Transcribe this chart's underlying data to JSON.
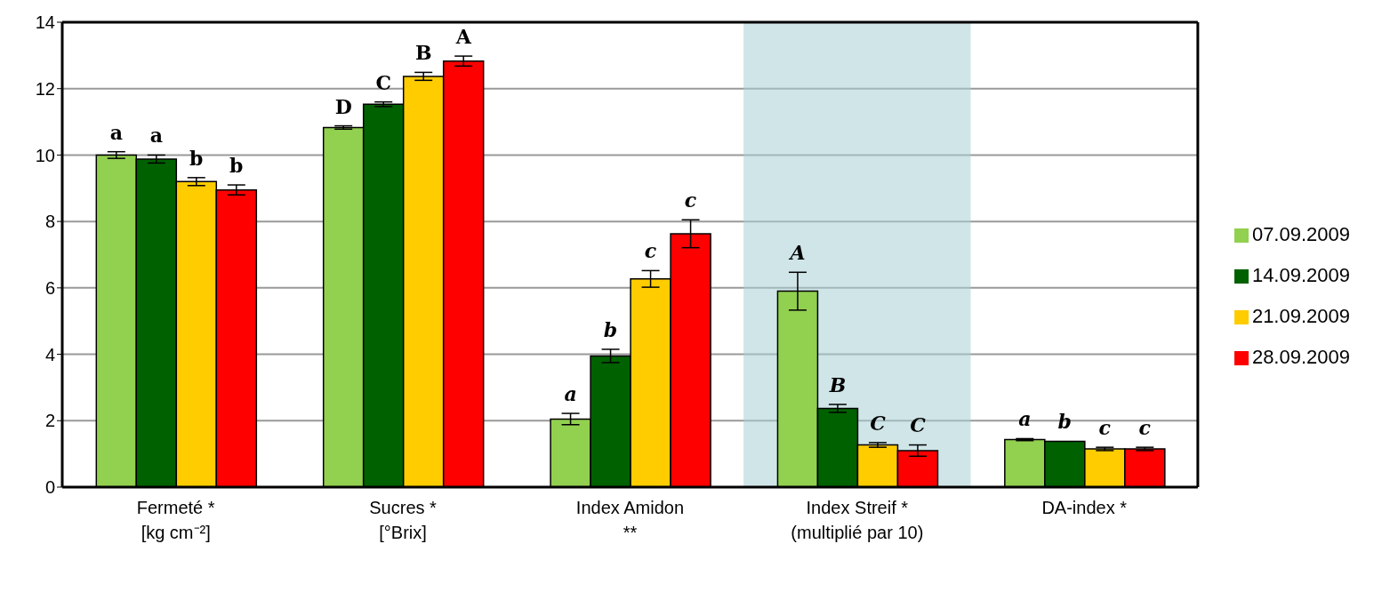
{
  "chart_data": {
    "type": "bar",
    "categories": [
      "Fermeté *\n[kg cm⁻²]",
      "Sucres *\n[°Brix]",
      "Index Amidon\n**",
      "Index Streif *\n(multiplié par 10)",
      "DA-index *"
    ],
    "series": [
      {
        "name": "07.09.2009",
        "color": "#92d050",
        "values": [
          10.0,
          10.83,
          2.05,
          5.9,
          1.43
        ],
        "errors": [
          0.1,
          0.05,
          0.17,
          0.57,
          0.03
        ],
        "value_labels": [
          "a",
          "D",
          "a",
          "A",
          "a"
        ]
      },
      {
        "name": "14.09.2009",
        "color": "#006100",
        "values": [
          9.88,
          11.53,
          3.95,
          2.37,
          1.38
        ],
        "errors": [
          0.12,
          0.07,
          0.2,
          0.12,
          null
        ],
        "value_labels": [
          "a",
          "C",
          "b",
          "B",
          "b"
        ]
      },
      {
        "name": "21.09.2009",
        "color": "#ffcc00",
        "values": [
          9.2,
          12.37,
          6.27,
          1.27,
          1.15
        ],
        "errors": [
          0.12,
          0.12,
          0.25,
          0.07,
          0.05
        ],
        "value_labels": [
          "b",
          "B",
          "c",
          "C",
          "c"
        ]
      },
      {
        "name": "28.09.2009",
        "color": "#ff0000",
        "values": [
          8.95,
          12.83,
          7.63,
          1.1,
          1.15
        ],
        "errors": [
          0.15,
          0.15,
          0.42,
          0.17,
          0.05
        ],
        "value_labels": [
          "b",
          "A",
          "c",
          "C",
          "c"
        ]
      }
    ],
    "ylim": [
      0,
      14
    ],
    "yticks": [
      0,
      2,
      4,
      6,
      8,
      10,
      12,
      14
    ],
    "bands": [
      {
        "axis": "x",
        "from": "Index Streif *\n(multiplié par 10)",
        "to": "Index Streif *\n(multiplié par 10)",
        "color": "#a9cfd6"
      }
    ],
    "grid": "y",
    "legend": "right"
  }
}
